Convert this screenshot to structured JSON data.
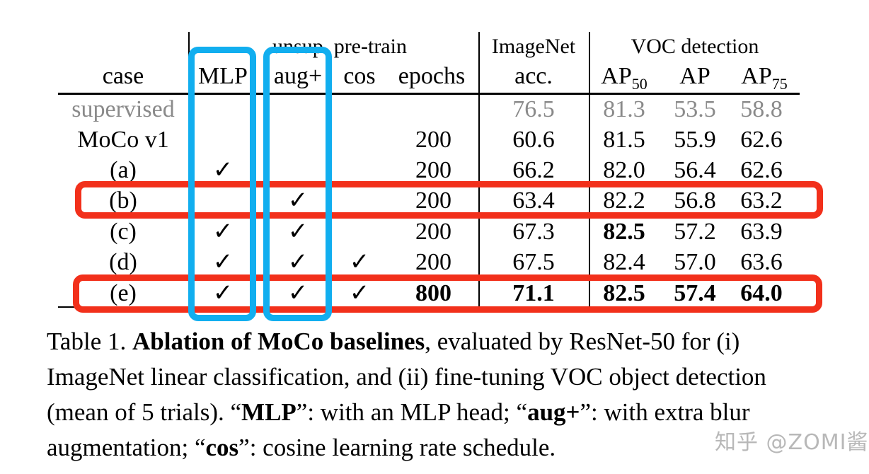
{
  "table": {
    "header": {
      "group_unsup": "unsup. pre-train",
      "group_imagenet": "ImageNet",
      "group_voc": "VOC detection",
      "case": "case",
      "mlp": "MLP",
      "aug": "aug+",
      "cos": "cos",
      "epochs": "epochs",
      "acc": "acc.",
      "ap50_base": "AP",
      "ap50_sub": "50",
      "ap": "AP",
      "ap75_base": "AP",
      "ap75_sub": "75"
    },
    "check_glyph": "✓",
    "rows": [
      {
        "case": "supervised",
        "mlp": "",
        "aug": "",
        "cos": "",
        "epochs": "",
        "acc": "76.5",
        "ap50": "81.3",
        "ap": "53.5",
        "ap75": "58.8",
        "style": "gray"
      },
      {
        "case": "MoCo v1",
        "mlp": "",
        "aug": "",
        "cos": "",
        "epochs": "200",
        "acc": "60.6",
        "ap50": "81.5",
        "ap": "55.9",
        "ap75": "62.6"
      },
      {
        "case": "(a)",
        "mlp": "✓",
        "aug": "",
        "cos": "",
        "epochs": "200",
        "acc": "66.2",
        "ap50": "82.0",
        "ap": "56.4",
        "ap75": "62.6"
      },
      {
        "case": "(b)",
        "mlp": "",
        "aug": "✓",
        "cos": "",
        "epochs": "200",
        "acc": "63.4",
        "ap50": "82.2",
        "ap": "56.8",
        "ap75": "63.2",
        "highlight": "red"
      },
      {
        "case": "(c)",
        "mlp": "✓",
        "aug": "✓",
        "cos": "",
        "epochs": "200",
        "acc": "67.3",
        "ap50": "82.5",
        "ap": "57.2",
        "ap75": "63.9",
        "bold": [
          "ap50"
        ]
      },
      {
        "case": "(d)",
        "mlp": "✓",
        "aug": "✓",
        "cos": "✓",
        "epochs": "200",
        "acc": "67.5",
        "ap50": "82.4",
        "ap": "57.0",
        "ap75": "63.6"
      },
      {
        "case": "(e)",
        "mlp": "✓",
        "aug": "✓",
        "cos": "✓",
        "epochs": "800",
        "acc": "71.1",
        "ap50": "82.5",
        "ap": "57.4",
        "ap75": "64.0",
        "bold": [
          "epochs",
          "acc",
          "ap50",
          "ap",
          "ap75"
        ],
        "highlight": "red"
      }
    ]
  },
  "annotations": {
    "blue_boxes": [
      "MLP column",
      "aug+ column"
    ],
    "red_boxes": [
      "row (b)",
      "row (e)"
    ],
    "blue_color": "#11aeef",
    "red_color": "#f2301b"
  },
  "caption": {
    "label": "Table 1.",
    "title_bold": "Ablation of MoCo baselines",
    "part1": ", evaluated by ResNet-50 for (i) ImageNet linear classification, and (ii) fine-tuning VOC object detection (mean of 5 trials). “",
    "mlp_bold": "MLP",
    "part2": "”: with an MLP head; “",
    "aug_bold": "aug+",
    "part3": "”: with extra blur augmentation; “",
    "cos_bold": "cos",
    "part4": "”: cosine learning rate schedule."
  },
  "watermark": "知乎 @ZOMI酱"
}
